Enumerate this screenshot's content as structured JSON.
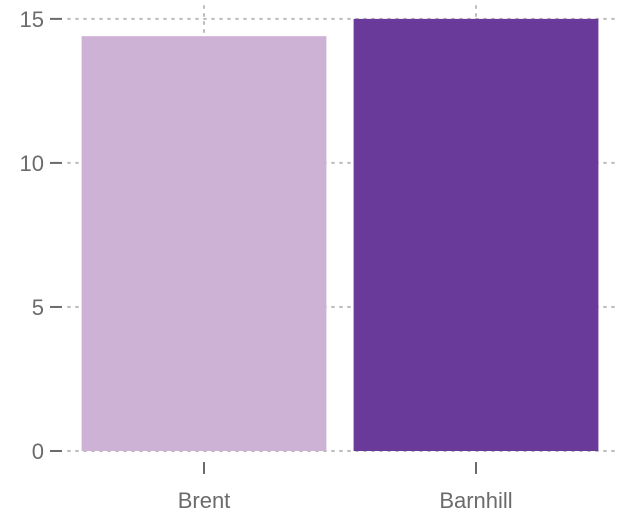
{
  "chart_data": {
    "type": "bar",
    "categories": [
      "Brent",
      "Barnhill"
    ],
    "values": [
      14.4,
      15.0
    ],
    "colors": [
      "#cdb2d6",
      "#6a3a9a"
    ],
    "xlabel": "",
    "ylabel": "",
    "ylim": [
      0,
      15.1
    ],
    "yticks": [
      0,
      5,
      10,
      15
    ],
    "grid": true,
    "legend": "none"
  }
}
